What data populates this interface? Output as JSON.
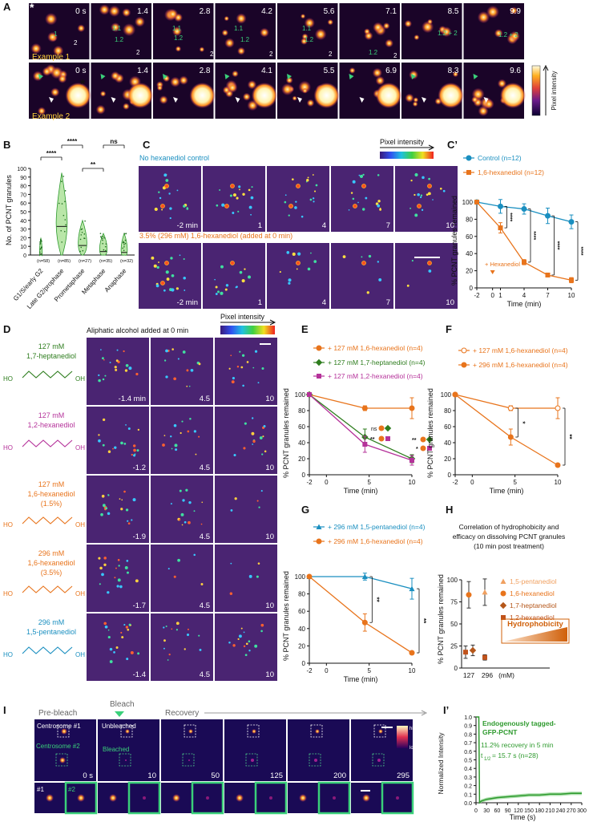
{
  "panels": {
    "A": {
      "label": "A",
      "row1_example": "Example 1",
      "row1_times": [
        "0 s",
        "1.4",
        "2.8",
        "4.2",
        "5.6",
        "7.1",
        "8.5",
        "9.9"
      ],
      "row1_annotations": {
        "g11": "1.1",
        "g12": "1.2",
        "g1": "1",
        "g2": "2",
        "g12b": "1.2 + 2",
        "g12c": "1.2 + 2"
      },
      "row2_example": "Example 2",
      "row2_times": [
        "0 s",
        "1.4",
        "2.8",
        "4.1",
        "5.5",
        "6.9",
        "8.3",
        "9.6"
      ],
      "colorbar_label": "Pixel intensity",
      "asterisk": "*"
    },
    "B": {
      "label": "B",
      "ylabel": "No. of PCNT granules",
      "yticks": [
        "0",
        "10",
        "20",
        "30",
        "40",
        "50",
        "60",
        "70",
        "80",
        "90",
        "100"
      ],
      "categories": [
        "G1/S/early G2",
        "Late G2/prophase",
        "Prometaphase",
        "Metaphase",
        "Anaphase"
      ],
      "n_labels": [
        "(n=58)",
        "(n=85)",
        "(n=27)",
        "(n=35)",
        "(n=32)"
      ],
      "sig": [
        "****",
        "****",
        "**",
        "ns"
      ]
    },
    "C": {
      "label": "C",
      "row1_title": "No hexanediol control",
      "row2_title": "3.5% (296 mM) 1,6-hexanediol (added at 0 min)",
      "times": [
        "-2 min",
        "1",
        "4",
        "7",
        "10"
      ],
      "colorbar_label": "Pixel intensity"
    },
    "C2": {
      "label": "C’",
      "legend": [
        "Control (n=12)",
        "1,6-hexanediol (n=12)"
      ],
      "ylabel": "% PCNT granules remained",
      "xlabel": "Time (min)",
      "xticks": [
        "-2",
        "0",
        "1",
        "4",
        "7",
        "10"
      ],
      "yticks": [
        "0",
        "20",
        "40",
        "60",
        "80",
        "100"
      ],
      "annotation": "+ Hexanediol",
      "sig": [
        "****",
        "****",
        "****",
        "****"
      ]
    },
    "D": {
      "label": "D",
      "header": "Aliphatic alcohol added at 0 min",
      "colorbar_label": "Pixel intensity",
      "rows": [
        {
          "conc": "127 mM",
          "name": "1,7-heptanediol",
          "color": "#2e7d1e",
          "times": [
            "-1.4 min",
            "4.5",
            "10"
          ]
        },
        {
          "conc": "127 mM",
          "name": "1,2-hexanediol",
          "color": "#b5329a",
          "times": [
            "-1.2",
            "4.5",
            "10"
          ]
        },
        {
          "conc": "127 mM",
          "name": "1,6-hexanediol",
          "extra": "(1.5%)",
          "color": "#e8741c",
          "times": [
            "-1.9",
            "4.5",
            "10"
          ]
        },
        {
          "conc": "296 mM",
          "name": "1,6-hexanediol",
          "extra": "(3.5%)",
          "color": "#e8741c",
          "times": [
            "-1.7",
            "4.5",
            "10"
          ]
        },
        {
          "conc": "296 mM",
          "name": "1,5-pentanediol",
          "color": "#1a8fc0",
          "times": [
            "-1.4",
            "4.5",
            "10"
          ]
        }
      ],
      "ho": "HO",
      "oh": "OH"
    },
    "E": {
      "label": "E",
      "legend": [
        "+ 127 mM 1,6-hexanediol (n=4)",
        "+ 127 mM 1,7-heptanediol (n=4)",
        "+ 127 mM 1,2-hexanediol (n=4)"
      ],
      "ylabel": "% PCNT granules remained",
      "xlabel": "Time (min)",
      "xticks": [
        "-2",
        "0",
        "5",
        "10"
      ],
      "yticks": [
        "0",
        "20",
        "40",
        "60",
        "80",
        "100"
      ],
      "sig": [
        "ns",
        "**",
        "**",
        "*"
      ]
    },
    "F": {
      "label": "F",
      "legend": [
        "+ 127 mM 1,6-hexanediol (n=4)",
        "+ 296 mM 1,6-hexanediol (n=4)"
      ],
      "ylabel": "% PCNT granules remained",
      "xlabel": "Time (min)",
      "xticks": [
        "-2",
        "0",
        "5",
        "10"
      ],
      "yticks": [
        "0",
        "20",
        "40",
        "60",
        "80",
        "100"
      ],
      "sig": [
        "*",
        "**"
      ]
    },
    "G": {
      "label": "G",
      "legend": [
        "+ 296 mM 1,5-pentanediol (n=4)",
        "+ 296 mM 1,6-hexanediol (n=4)"
      ],
      "ylabel": "% PCNT granules remained",
      "xlabel": "Time (min)",
      "xticks": [
        "-2",
        "0",
        "5",
        "10"
      ],
      "yticks": [
        "0",
        "20",
        "40",
        "60",
        "80",
        "100"
      ],
      "sig": [
        "**",
        "**"
      ]
    },
    "H": {
      "label": "H",
      "title1": "Correlation of hydrophobicity and",
      "title2": "efficacy on dissolving PCNT granules",
      "title3": "(10 min post treatment)",
      "legend": [
        "1,5-pentanediol",
        "1,6-hexanediol",
        "1,7-heptanediol",
        "1,2-hexanediol"
      ],
      "ylabel": "% PCNT granules remained",
      "xticks": [
        "127",
        "296",
        "(mM)"
      ],
      "yticks": [
        "0",
        "25",
        "50",
        "75",
        "100"
      ],
      "hydro": "Hydrophobicity"
    },
    "I": {
      "label": "I",
      "stages": [
        "Pre-bleach",
        "Bleach",
        "Recovery"
      ],
      "centrosome1": "Centrosome #1",
      "centrosome2": "Centrosome #2",
      "unbleached": "Unbleached",
      "bleached": "Bleached",
      "times": [
        "0 s",
        "10",
        "50",
        "125",
        "200",
        "295"
      ],
      "high": "high",
      "low": "low",
      "c1": "#1",
      "c2": "#2"
    },
    "I2": {
      "label": "I’",
      "title1": "Endogenously tagged-",
      "title2": "GFP-PCNT",
      "recovery": "11.2% recovery in 5 min",
      "thalf": "t",
      "thalf_sub": "1/2",
      "thalf_rest": " = 15.7 s (n=28)",
      "ylabel": "Normalized Intensity",
      "xlabel": "Time (s)",
      "xticks": [
        "0",
        "30",
        "60",
        "90",
        "120",
        "150",
        "180",
        "210",
        "240",
        "270",
        "300"
      ],
      "yticks": [
        "0.0",
        "0.1",
        "0.2",
        "0.3",
        "0.4",
        "0.5",
        "0.6",
        "0.7",
        "0.8",
        "0.9",
        "1.0"
      ]
    }
  },
  "chart_data": [
    {
      "id": "B",
      "type": "violin",
      "title": "",
      "ylabel": "No. of PCNT granules",
      "ylim": [
        0,
        100
      ],
      "categories": [
        "G1/S/early G2",
        "Late G2/prophase",
        "Prometaphase",
        "Metaphase",
        "Anaphase"
      ],
      "medians": [
        1,
        33,
        11,
        4,
        3
      ],
      "maxima": [
        20,
        95,
        40,
        25,
        25
      ],
      "n": [
        58,
        85,
        27,
        35,
        32
      ]
    },
    {
      "id": "C2",
      "type": "line",
      "xlabel": "Time (min)",
      "ylabel": "% PCNT granules remained",
      "ylim": [
        0,
        100
      ],
      "x": [
        -2,
        1,
        4,
        7,
        10
      ],
      "series": [
        {
          "name": "Control (n=12)",
          "color": "#1a8fc0",
          "values": [
            100,
            95,
            92,
            84,
            77
          ],
          "err": [
            2,
            8,
            6,
            9,
            8
          ]
        },
        {
          "name": "1,6-hexanediol (n=12)",
          "color": "#e8741c",
          "values": [
            100,
            70,
            30,
            15,
            9
          ],
          "err": [
            2,
            6,
            3,
            2,
            3
          ]
        }
      ]
    },
    {
      "id": "E",
      "type": "line",
      "xlabel": "Time (min)",
      "ylabel": "% PCNT granules remained",
      "ylim": [
        0,
        100
      ],
      "x": [
        -2,
        4.5,
        10
      ],
      "series": [
        {
          "name": "+ 127 mM 1,6-hexanediol (n=4)",
          "color": "#e8741c",
          "values": [
            100,
            83,
            83
          ],
          "err": [
            0,
            3,
            13
          ]
        },
        {
          "name": "+ 127 mM 1,7-heptanediol (n=4)",
          "color": "#2e7d1e",
          "values": [
            100,
            47,
            20
          ],
          "err": [
            0,
            10,
            5
          ]
        },
        {
          "name": "+ 127 mM 1,2-hexanediol (n=4)",
          "color": "#b5329a",
          "values": [
            100,
            38,
            18
          ],
          "err": [
            0,
            10,
            6
          ]
        }
      ]
    },
    {
      "id": "F",
      "type": "line",
      "xlabel": "Time (min)",
      "ylabel": "% PCNT granules remained",
      "ylim": [
        0,
        100
      ],
      "x": [
        -2,
        4.5,
        10
      ],
      "series": [
        {
          "name": "+ 127 mM 1,6-hexanediol (n=4)",
          "color": "#e8741c",
          "values": [
            100,
            83,
            83
          ],
          "err": [
            0,
            3,
            13
          ]
        },
        {
          "name": "+ 296 mM 1,6-hexanediol (n=4)",
          "color": "#e8741c",
          "values": [
            100,
            47,
            12
          ],
          "err": [
            0,
            10,
            2
          ]
        }
      ]
    },
    {
      "id": "G",
      "type": "line",
      "xlabel": "Time (min)",
      "ylabel": "% PCNT granules remained",
      "ylim": [
        0,
        100
      ],
      "x": [
        -2,
        4.5,
        10
      ],
      "series": [
        {
          "name": "+ 296 mM 1,5-pentanediol (n=4)",
          "color": "#1a8fc0",
          "values": [
            100,
            100,
            86
          ],
          "err": [
            0,
            4,
            12
          ]
        },
        {
          "name": "+ 296 mM 1,6-hexanediol (n=4)",
          "color": "#e8741c",
          "values": [
            100,
            47,
            12
          ],
          "err": [
            0,
            10,
            2
          ]
        }
      ]
    },
    {
      "id": "H",
      "type": "scatter",
      "ylabel": "% PCNT granules remained",
      "ylim": [
        0,
        100
      ],
      "series": [
        {
          "name": "1,5-pentanediol",
          "color": "#f0a060",
          "x": [
            296
          ],
          "values": [
            86
          ],
          "err": [
            15
          ]
        },
        {
          "name": "1,6-hexanediol",
          "color": "#e8741c",
          "x": [
            127
          ],
          "values": [
            83
          ],
          "err": [
            15
          ]
        },
        {
          "name": "1,7-heptanediol",
          "color": "#b5571a",
          "x": [
            127
          ],
          "values": [
            20
          ],
          "err": [
            6
          ]
        },
        {
          "name": "1,2-hexanediol",
          "color": "#c0531c",
          "x": [
            127,
            296
          ],
          "values": [
            18,
            12
          ],
          "err": [
            7,
            3
          ]
        }
      ]
    },
    {
      "id": "I2",
      "type": "line",
      "xlabel": "Time (s)",
      "ylabel": "Normalized Intensity",
      "xlim": [
        0,
        300
      ],
      "ylim": [
        0,
        1
      ],
      "series": [
        {
          "name": "GFP-PCNT",
          "color": "#2e9a2e",
          "x": [
            0,
            8,
            10,
            15,
            30,
            60,
            90,
            120,
            150,
            180,
            210,
            240,
            270,
            300
          ],
          "values": [
            1.0,
            1.0,
            0.0,
            0.02,
            0.04,
            0.06,
            0.07,
            0.08,
            0.09,
            0.09,
            0.1,
            0.1,
            0.11,
            0.11
          ]
        }
      ]
    }
  ]
}
